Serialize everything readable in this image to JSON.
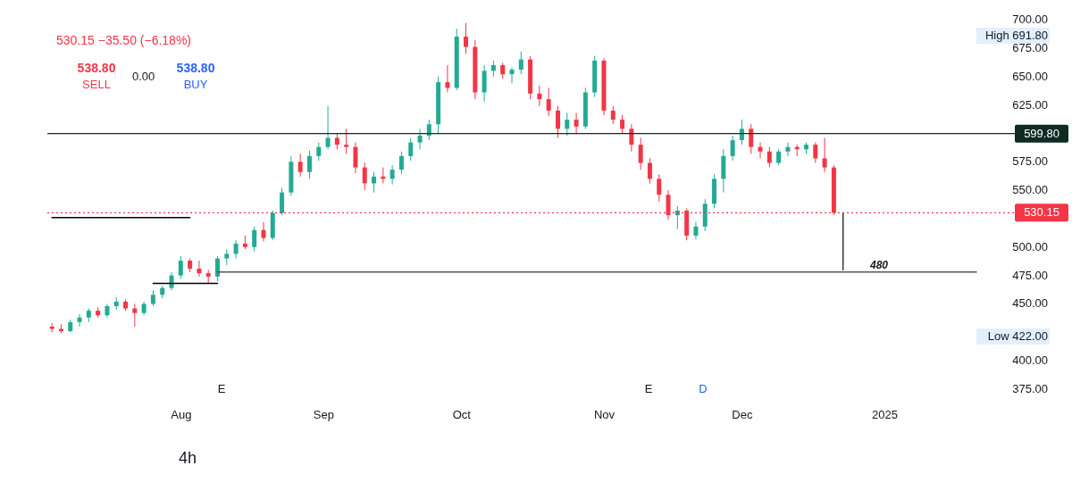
{
  "chart_data": {
    "type": "candlestick",
    "x": [
      "2024-07-04",
      "2024-07-06",
      "2024-07-08",
      "2024-07-10",
      "2024-07-12",
      "2024-07-14",
      "2024-07-16",
      "2024-07-18",
      "2024-07-20",
      "2024-07-22",
      "2024-07-24",
      "2024-07-26",
      "2024-07-28",
      "2024-07-30",
      "2024-08-01",
      "2024-08-03",
      "2024-08-05",
      "2024-08-07",
      "2024-08-09",
      "2024-08-11",
      "2024-08-13",
      "2024-08-15",
      "2024-08-17",
      "2024-08-19",
      "2024-08-21",
      "2024-08-23",
      "2024-08-25",
      "2024-08-27",
      "2024-08-29",
      "2024-08-31",
      "2024-09-02",
      "2024-09-04",
      "2024-09-06",
      "2024-09-08",
      "2024-09-10",
      "2024-09-12",
      "2024-09-14",
      "2024-09-16",
      "2024-09-18",
      "2024-09-20",
      "2024-09-22",
      "2024-09-24",
      "2024-09-26",
      "2024-09-28",
      "2024-09-30",
      "2024-10-02",
      "2024-10-04",
      "2024-10-06",
      "2024-10-08",
      "2024-10-10",
      "2024-10-12",
      "2024-10-14",
      "2024-10-16",
      "2024-10-18",
      "2024-10-20",
      "2024-10-22",
      "2024-10-24",
      "2024-10-26",
      "2024-10-28",
      "2024-10-30",
      "2024-11-01",
      "2024-11-03",
      "2024-11-05",
      "2024-11-07",
      "2024-11-09",
      "2024-11-11",
      "2024-11-13",
      "2024-11-15",
      "2024-11-17",
      "2024-11-19",
      "2024-11-21",
      "2024-11-23",
      "2024-11-25",
      "2024-11-27",
      "2024-11-29",
      "2024-12-01",
      "2024-12-03",
      "2024-12-05",
      "2024-12-07",
      "2024-12-09",
      "2024-12-11",
      "2024-12-13",
      "2024-12-15",
      "2024-12-17",
      "2024-12-19",
      "2024-12-21"
    ],
    "ohlc": [
      [
        430,
        433,
        425,
        428
      ],
      [
        428,
        432,
        424,
        426
      ],
      [
        426,
        436,
        425,
        434
      ],
      [
        434,
        441,
        430,
        438
      ],
      [
        438,
        446,
        434,
        444
      ],
      [
        444,
        447,
        438,
        440
      ],
      [
        440,
        450,
        438,
        448
      ],
      [
        448,
        456,
        445,
        452
      ],
      [
        452,
        454,
        444,
        446
      ],
      [
        446,
        450,
        430,
        442
      ],
      [
        442,
        452,
        440,
        450
      ],
      [
        450,
        462,
        448,
        458
      ],
      [
        458,
        466,
        455,
        464
      ],
      [
        464,
        478,
        462,
        475
      ],
      [
        475,
        492,
        472,
        488
      ],
      [
        488,
        490,
        478,
        481
      ],
      [
        481,
        488,
        474,
        477
      ],
      [
        477,
        480,
        468,
        474
      ],
      [
        474,
        492,
        470,
        490
      ],
      [
        490,
        498,
        484,
        494
      ],
      [
        494,
        506,
        490,
        503
      ],
      [
        503,
        510,
        498,
        500
      ],
      [
        500,
        518,
        496,
        515
      ],
      [
        515,
        522,
        505,
        508
      ],
      [
        508,
        532,
        506,
        530
      ],
      [
        530,
        552,
        528,
        548
      ],
      [
        548,
        580,
        545,
        575
      ],
      [
        575,
        582,
        562,
        566
      ],
      [
        566,
        585,
        560,
        580
      ],
      [
        580,
        592,
        576,
        588
      ],
      [
        588,
        624,
        586,
        596
      ],
      [
        596,
        600,
        586,
        590
      ],
      [
        590,
        604,
        582,
        588
      ],
      [
        588,
        592,
        565,
        570
      ],
      [
        570,
        574,
        550,
        556
      ],
      [
        556,
        566,
        548,
        562
      ],
      [
        562,
        570,
        556,
        560
      ],
      [
        560,
        572,
        555,
        568
      ],
      [
        568,
        584,
        564,
        580
      ],
      [
        580,
        596,
        576,
        592
      ],
      [
        592,
        604,
        586,
        598
      ],
      [
        598,
        612,
        594,
        608
      ],
      [
        608,
        650,
        600,
        645
      ],
      [
        645,
        660,
        636,
        640
      ],
      [
        640,
        692,
        638,
        685
      ],
      [
        685,
        697,
        670,
        676
      ],
      [
        676,
        682,
        630,
        636
      ],
      [
        636,
        660,
        628,
        655
      ],
      [
        655,
        664,
        650,
        660
      ],
      [
        660,
        662,
        648,
        652
      ],
      [
        652,
        658,
        644,
        656
      ],
      [
        656,
        672,
        652,
        665
      ],
      [
        665,
        668,
        630,
        635
      ],
      [
        635,
        642,
        624,
        630
      ],
      [
        630,
        640,
        615,
        620
      ],
      [
        620,
        624,
        596,
        604
      ],
      [
        604,
        618,
        598,
        612
      ],
      [
        612,
        618,
        600,
        606
      ],
      [
        606,
        640,
        604,
        636
      ],
      [
        636,
        668,
        632,
        664
      ],
      [
        664,
        666,
        616,
        620
      ],
      [
        620,
        624,
        608,
        612
      ],
      [
        612,
        616,
        600,
        604
      ],
      [
        604,
        608,
        584,
        590
      ],
      [
        590,
        596,
        568,
        574
      ],
      [
        574,
        578,
        556,
        560
      ],
      [
        560,
        564,
        540,
        546
      ],
      [
        546,
        550,
        524,
        528
      ],
      [
        528,
        536,
        516,
        532
      ],
      [
        532,
        534,
        506,
        510
      ],
      [
        510,
        522,
        507,
        518
      ],
      [
        518,
        542,
        514,
        538
      ],
      [
        538,
        564,
        534,
        560
      ],
      [
        560,
        586,
        548,
        580
      ],
      [
        580,
        598,
        576,
        594
      ],
      [
        594,
        612,
        590,
        604
      ],
      [
        604,
        608,
        582,
        588
      ],
      [
        588,
        592,
        578,
        584
      ],
      [
        584,
        588,
        570,
        574
      ],
      [
        574,
        586,
        572,
        584
      ],
      [
        584,
        592,
        580,
        588
      ],
      [
        588,
        590,
        580,
        586
      ],
      [
        586,
        592,
        582,
        590
      ],
      [
        590,
        592,
        574,
        578
      ],
      [
        578,
        596,
        566,
        570
      ],
      [
        570,
        572,
        528,
        530.15
      ]
    ],
    "colors": [
      "#f23645",
      "#f23645",
      "#22ab94",
      "#22ab94",
      "#22ab94",
      "#f23645",
      "#22ab94",
      "#22ab94",
      "#f23645",
      "#f23645",
      "#22ab94",
      "#22ab94",
      "#22ab94",
      "#22ab94",
      "#22ab94",
      "#f23645",
      "#f23645",
      "#f23645",
      "#22ab94",
      "#22ab94",
      "#22ab94",
      "#f23645",
      "#22ab94",
      "#f23645",
      "#22ab94",
      "#22ab94",
      "#22ab94",
      "#f23645",
      "#22ab94",
      "#22ab94",
      "#22ab94",
      "#f23645",
      "#f23645",
      "#f23645",
      "#f23645",
      "#22ab94",
      "#f23645",
      "#22ab94",
      "#22ab94",
      "#22ab94",
      "#22ab94",
      "#22ab94",
      "#22ab94",
      "#f23645",
      "#22ab94",
      "#f23645",
      "#f23645",
      "#22ab94",
      "#22ab94",
      "#f23645",
      "#22ab94",
      "#22ab94",
      "#f23645",
      "#f23645",
      "#f23645",
      "#f23645",
      "#22ab94",
      "#f23645",
      "#22ab94",
      "#22ab94",
      "#f23645",
      "#f23645",
      "#f23645",
      "#f23645",
      "#f23645",
      "#f23645",
      "#f23645",
      "#f23645",
      "#22ab94",
      "#f23645",
      "#22ab94",
      "#22ab94",
      "#22ab94",
      "#22ab94",
      "#22ab94",
      "#22ab94",
      "#f23645",
      "#f23645",
      "#f23645",
      "#22ab94",
      "#22ab94",
      "#f23645",
      "#22ab94",
      "#f23645",
      "#f23645",
      "#f23645"
    ],
    "series": [
      {
        "type": "line",
        "color": "#000000",
        "x": [
          "2024-07-04",
          "2024-08-03"
        ],
        "values": [
          526,
          526
        ]
      },
      {
        "type": "line",
        "color": "#000000",
        "x": [
          "2024-07-26",
          "2024-08-09"
        ],
        "values": [
          468,
          468
        ]
      },
      {
        "type": "line",
        "color": "#555555",
        "x": [
          "2024-08-09",
          "2025-01-21"
        ],
        "values": [
          478,
          478
        ]
      },
      {
        "type": "line",
        "color": "#333333",
        "x": [
          "2024-12-23",
          "2024-12-23"
        ],
        "values": [
          530,
          480
        ]
      }
    ],
    "ref_lines": [
      {
        "axis": "y",
        "value": 599.8,
        "label": "599.80",
        "color": "#0e2b24",
        "line_style": "solid"
      },
      {
        "axis": "y",
        "value": 530.15,
        "label": "530.15",
        "color": "#f23645",
        "line_style": "dotted"
      }
    ],
    "annotations": [
      "530.15  −35.50 (−6.18%)",
      "538.80",
      "SELL",
      "0.00",
      "538.80",
      "BUY",
      "4h",
      "480",
      "High 691.80",
      "Low 422.00",
      "E",
      "E",
      "D"
    ],
    "xlim": [
      "2024-07-03",
      "2025-01-21"
    ],
    "xticks": [
      {
        "value": "2024-08-01",
        "label": "Aug"
      },
      {
        "value": "2024-09-01",
        "label": "Sep"
      },
      {
        "value": "2024-10-01",
        "label": "Oct"
      },
      {
        "value": "2024-11-01",
        "label": "Nov"
      },
      {
        "value": "2024-12-01",
        "label": "Dec"
      },
      {
        "value": "2025-01-01",
        "label": "2025"
      }
    ],
    "ylim": [
      375,
      700
    ],
    "yticks": [
      {
        "value": 375,
        "label": "375.00"
      },
      {
        "value": 400,
        "label": "400.00"
      },
      {
        "value": 450,
        "label": "450.00"
      },
      {
        "value": 475,
        "label": "475.00"
      },
      {
        "value": 500,
        "label": "500.00"
      },
      {
        "value": 550,
        "label": "550.00"
      },
      {
        "value": 575,
        "label": "575.00"
      },
      {
        "value": 625,
        "label": "625.00"
      },
      {
        "value": 650,
        "label": "650.00"
      },
      {
        "value": 675,
        "label": "675.00"
      },
      {
        "value": 700,
        "label": "700.00"
      }
    ],
    "grid": false,
    "marker": "none",
    "line_style": "solid"
  }
}
